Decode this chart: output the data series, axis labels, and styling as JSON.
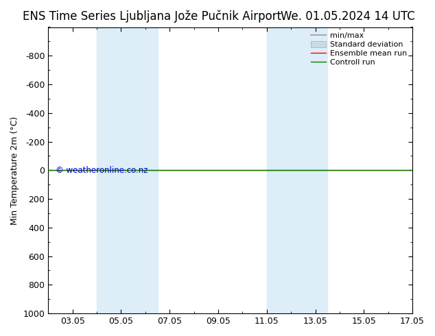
{
  "title_left": "ENS Time Series Ljubljana Jože Pučnik Airport",
  "title_right": "We. 01.05.2024 14 UTC",
  "ylabel": "Min Temperature 2m (°C)",
  "ylim_top": -1000,
  "ylim_bottom": 1000,
  "yticks": [
    -800,
    -600,
    -400,
    -200,
    0,
    200,
    400,
    600,
    800,
    1000
  ],
  "ytick_labels": [
    "-800",
    "-600",
    "-400",
    "-200",
    "0",
    "200",
    "400",
    "600",
    "800",
    "1000"
  ],
  "xlim": [
    0,
    15
  ],
  "xtick_positions": [
    1,
    3,
    5,
    7,
    9,
    11,
    13,
    15
  ],
  "xtick_labels": [
    "03.05",
    "05.05",
    "07.05",
    "09.05",
    "11.05",
    "13.05",
    "15.05",
    "17.05"
  ],
  "shaded_bands": [
    {
      "x_start": 2.0,
      "x_end": 4.5,
      "color": "#ddeef8"
    },
    {
      "x_start": 9.0,
      "x_end": 11.5,
      "color": "#ddeef8"
    }
  ],
  "line_y": 0,
  "ensemble_mean_color": "#ff0000",
  "control_run_color": "#008000",
  "watermark": "© weatheronline.co.nz",
  "watermark_color": "#0000cc",
  "background_color": "#ffffff",
  "legend_minmax_color": "#aaaaaa",
  "legend_stddev_color": "#c8dce8",
  "title_fontsize": 12,
  "axis_label_fontsize": 9,
  "tick_fontsize": 9,
  "legend_fontsize": 8
}
